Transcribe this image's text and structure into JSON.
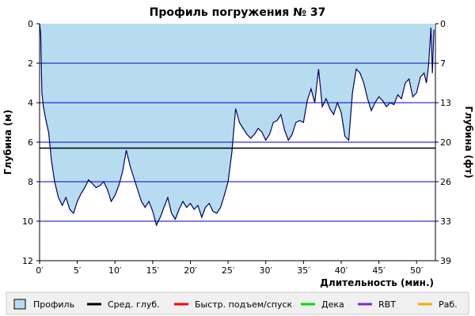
{
  "chart_data": {
    "type": "area",
    "title": "Профиль погружения № 37",
    "xlabel": "Длительность (мин.)",
    "ylabel_left": "Глубина (м)",
    "ylabel_right": "Глубина (фт)",
    "xlim": [
      0,
      52.5
    ],
    "ylim": [
      0,
      12
    ],
    "y_inverted": true,
    "x_ticks": [
      "0′",
      "5′",
      "10′",
      "15′",
      "20′",
      "25′",
      "30′",
      "35′",
      "40′",
      "45′",
      "50′"
    ],
    "x_tick_values": [
      0,
      5,
      10,
      15,
      20,
      25,
      30,
      35,
      40,
      45,
      50
    ],
    "y_ticks_left": [
      "0",
      "2",
      "4",
      "6",
      "8",
      "10",
      "12"
    ],
    "y_tick_values_left": [
      0,
      2,
      4,
      6,
      8,
      10,
      12
    ],
    "y_ticks_right": [
      "0",
      "7",
      "13",
      "20",
      "26",
      "33",
      "39"
    ],
    "y_tick_values_right_m": [
      0,
      2,
      4,
      6,
      8,
      10,
      12
    ],
    "blue_grid_lines_m": [
      2,
      4,
      6,
      8,
      10
    ],
    "avg_depth_m": 6.3,
    "grid": true,
    "legend_placement": "bottom",
    "colors": {
      "profile_fill": "#b8dcef",
      "profile_line": "#000066",
      "grid": "#0000cc",
      "avg": "#000000",
      "fast_ascent": "#ff0000",
      "deco": "#00dd00",
      "rbt": "#8822dd",
      "work": "#ffa500"
    },
    "series": [
      {
        "name": "Профиль",
        "x": [
          0,
          0.15,
          0.3,
          0.5,
          0.8,
          1.2,
          1.6,
          2.0,
          2.5,
          3.0,
          3.5,
          4.0,
          4.5,
          5.0,
          5.5,
          6.0,
          6.5,
          7.0,
          7.5,
          8.0,
          8.5,
          9.0,
          9.5,
          10.0,
          10.5,
          11.0,
          11.5,
          12.0,
          12.5,
          13.0,
          13.5,
          14.0,
          14.5,
          15.0,
          15.5,
          16.0,
          16.5,
          17.0,
          17.5,
          18.0,
          18.5,
          19.0,
          19.5,
          20.0,
          20.5,
          21.0,
          21.5,
          22.0,
          22.5,
          23.0,
          23.5,
          24.0,
          24.5,
          25.0,
          25.5,
          26.0,
          26.5,
          27.0,
          27.5,
          28.0,
          28.5,
          29.0,
          29.5,
          30.0,
          30.5,
          31.0,
          31.5,
          32.0,
          32.5,
          33.0,
          33.5,
          34.0,
          34.5,
          35.0,
          35.5,
          36.0,
          36.5,
          37.0,
          37.5,
          38.0,
          38.5,
          39.0,
          39.5,
          40.0,
          40.5,
          41.0,
          41.5,
          42.0,
          42.5,
          43.0,
          43.5,
          44.0,
          44.5,
          45.0,
          45.5,
          46.0,
          46.5,
          47.0,
          47.5,
          48.0,
          48.5,
          49.0,
          49.5,
          50.0,
          50.5,
          51.0,
          51.3,
          51.6,
          51.9,
          52.1,
          52.3
        ],
        "depth": [
          0,
          0.5,
          3.5,
          4.2,
          4.8,
          5.5,
          7.0,
          8.0,
          8.8,
          9.2,
          8.8,
          9.4,
          9.6,
          9.0,
          8.6,
          8.3,
          7.9,
          8.1,
          8.3,
          8.2,
          8.0,
          8.4,
          9.0,
          8.7,
          8.2,
          7.5,
          6.4,
          7.2,
          7.8,
          8.4,
          9.0,
          9.3,
          9.0,
          9.5,
          10.2,
          9.8,
          9.3,
          8.8,
          9.6,
          9.9,
          9.4,
          9.0,
          9.3,
          9.1,
          9.4,
          9.2,
          9.8,
          9.3,
          9.1,
          9.5,
          9.6,
          9.3,
          8.7,
          8.0,
          6.5,
          4.3,
          5.0,
          5.3,
          5.6,
          5.8,
          5.6,
          5.3,
          5.5,
          5.9,
          5.6,
          5.0,
          4.9,
          4.6,
          5.4,
          5.9,
          5.6,
          5.0,
          4.9,
          5.0,
          3.9,
          3.3,
          4.0,
          2.3,
          4.2,
          3.8,
          4.3,
          4.6,
          4.0,
          4.5,
          5.7,
          5.9,
          3.5,
          2.3,
          2.5,
          3.0,
          3.8,
          4.4,
          4.0,
          3.7,
          3.9,
          4.2,
          4.0,
          4.1,
          3.6,
          3.8,
          3.0,
          2.8,
          3.7,
          3.5,
          2.7,
          2.5,
          3.0,
          2.1,
          0.2,
          2.5,
          0.3
        ]
      }
    ]
  },
  "legend": [
    {
      "label": "Профиль",
      "kind": "box",
      "color": "#b8dcef"
    },
    {
      "label": "Сред. глуб.",
      "kind": "line",
      "color": "#000000"
    },
    {
      "label": "Быстр. подъем/спуск",
      "kind": "line",
      "color": "#ff0000"
    },
    {
      "label": "Дека",
      "kind": "line",
      "color": "#00dd00"
    },
    {
      "label": "RBT",
      "kind": "line",
      "color": "#8822dd"
    },
    {
      "label": "Раб.",
      "kind": "line",
      "color": "#ffa500"
    }
  ]
}
